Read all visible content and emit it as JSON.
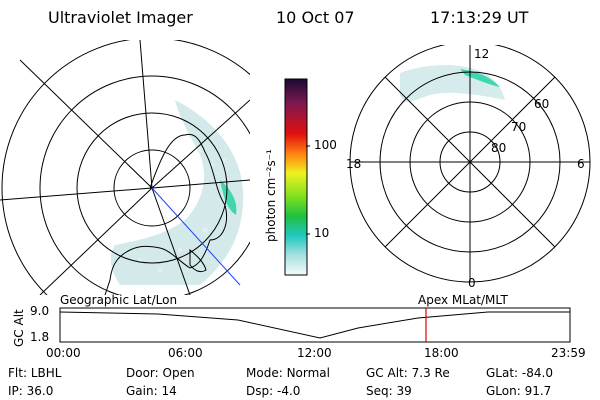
{
  "header": {
    "instrument": "Ultraviolet Imager",
    "date": "10 Oct 07",
    "time": "17:13:29 UT"
  },
  "colorbar": {
    "label": "photon cm⁻²s⁻¹",
    "ticks": [
      "100",
      "10"
    ]
  },
  "polar_plot": {
    "mlt_labels": [
      "12",
      "18",
      "6",
      "0"
    ],
    "lat_labels": [
      "60",
      "70",
      "80"
    ]
  },
  "altitude_plot": {
    "y_label": "GC Alt",
    "y_ticks": [
      "9.0",
      "1.8"
    ],
    "left_label": "Geographic Lat/Lon",
    "right_label": "Apex MLat/MLT",
    "x_ticks": [
      "00:00",
      "06:00",
      "12:00",
      "18:00",
      "23:59"
    ],
    "current_time_fraction": 0.7176,
    "colors": {
      "orbit": "#000000",
      "marker": "#e00000"
    }
  },
  "info": {
    "row1": [
      {
        "label": "Flt:",
        "value": "LBHL"
      },
      {
        "label": "Door:",
        "value": "Open"
      },
      {
        "label": "Mode:",
        "value": "Normal"
      },
      {
        "label": "GC Alt:",
        "value": "7.3 Re"
      },
      {
        "label": "GLat:",
        "value": "-84.0"
      }
    ],
    "row2": [
      {
        "label": "IP:",
        "value": "36.0"
      },
      {
        "label": "Gain:",
        "value": "14"
      },
      {
        "label": "Dsp:",
        "value": "-4.0"
      },
      {
        "label": "Seq:",
        "value": "39"
      },
      {
        "label": "GLon:",
        "value": "91.7"
      }
    ]
  }
}
